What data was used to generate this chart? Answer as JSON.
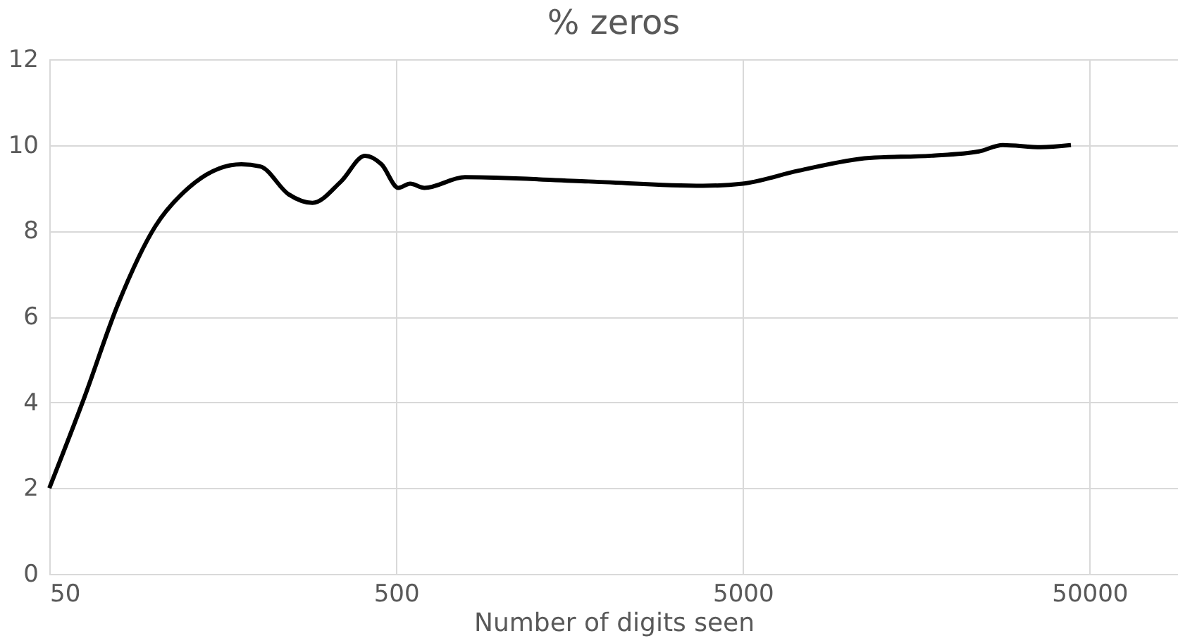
{
  "chart_data": {
    "type": "line",
    "title": "% zeros",
    "xlabel": "Number of digits seen",
    "x": [
      50,
      63,
      79,
      101,
      126,
      179,
      203,
      245,
      287,
      347,
      407,
      454,
      508,
      549,
      604,
      790,
      1796,
      3840,
      5000,
      7230,
      11600,
      17500,
      24000,
      28100,
      36200,
      44200
    ],
    "series": [
      {
        "color": "#000000",
        "values": [
          2.0,
          4.1,
          6.3,
          8.1,
          9.0,
          9.55,
          9.5,
          8.85,
          8.65,
          9.15,
          9.75,
          9.55,
          9.0,
          9.1,
          9.0,
          9.25,
          9.15,
          9.05,
          9.1,
          9.4,
          9.7,
          9.75,
          9.85,
          10.0,
          9.95,
          10.0
        ]
      }
    ],
    "log": "x",
    "xlim": [
      50,
      90000
    ],
    "xticks": [
      50,
      500,
      5000,
      50000
    ],
    "ylim": [
      0,
      12
    ],
    "yticks": [
      0,
      2,
      4,
      6,
      8,
      10,
      12
    ],
    "grid": true,
    "marker": "none",
    "line_style": "solid"
  }
}
